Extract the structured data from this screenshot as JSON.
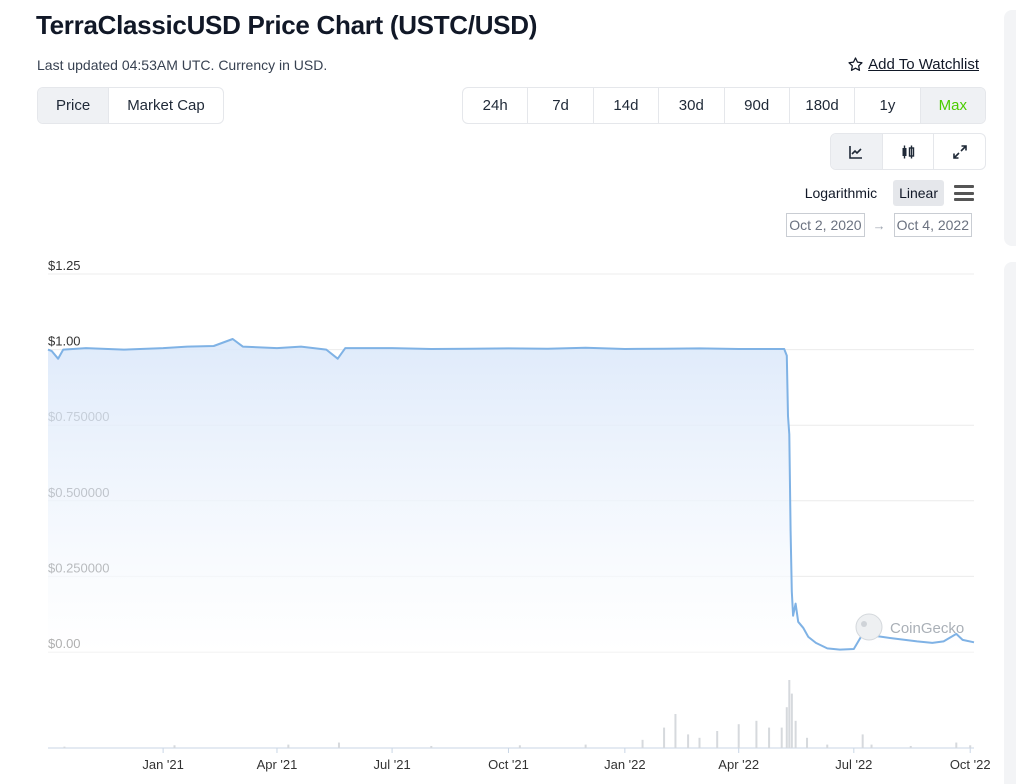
{
  "header": {
    "title": "TerraClassicUSD Price Chart (USTC/USD)",
    "subtitle": "Last updated 04:53AM UTC. Currency in USD.",
    "watchlist_label": "Add To Watchlist",
    "watchlist_icon": "star-outline-icon"
  },
  "metric_tabs": [
    {
      "label": "Price",
      "active": true
    },
    {
      "label": "Market Cap",
      "active": false
    }
  ],
  "range_tabs": [
    {
      "label": "24h",
      "active": false
    },
    {
      "label": "7d",
      "active": false
    },
    {
      "label": "14d",
      "active": false
    },
    {
      "label": "30d",
      "active": false
    },
    {
      "label": "90d",
      "active": false
    },
    {
      "label": "180d",
      "active": false
    },
    {
      "label": "1y",
      "active": false
    },
    {
      "label": "Max",
      "active": true
    }
  ],
  "view_buttons": [
    {
      "icon": "line-chart-icon",
      "active": true
    },
    {
      "icon": "candlestick-icon",
      "active": false
    },
    {
      "icon": "expand-icon",
      "active": false
    }
  ],
  "scale": {
    "logarithmic_label": "Logarithmic",
    "linear_label": "Linear",
    "active": "linear",
    "menu_icon": "hamburger-menu-icon"
  },
  "date_range": {
    "from": "Oct 2, 2020",
    "arrow": "→",
    "to": "Oct 4, 2022"
  },
  "colors": {
    "range_active": "#4bcc00",
    "line": "#7fb2e5",
    "area_top": "#dbe8fa",
    "volume": "#d6d9dd"
  },
  "chart_data": {
    "type": "area",
    "title": "",
    "xlabel": "",
    "ylabel": "",
    "y_scale": "linear",
    "ylim": [
      0,
      1.25
    ],
    "x_range": [
      "2020-10-02",
      "2022-10-04"
    ],
    "y_ticks": [
      {
        "value": 1.25,
        "label": "$1.25"
      },
      {
        "value": 1.0,
        "label": "$1.00"
      },
      {
        "value": 0.75,
        "label": "$0.750000"
      },
      {
        "value": 0.5,
        "label": "$0.500000"
      },
      {
        "value": 0.25,
        "label": "$0.250000"
      },
      {
        "value": 0.0,
        "label": "$0.00"
      }
    ],
    "x_ticks": [
      {
        "date": "2021-01-01",
        "label": "Jan '21"
      },
      {
        "date": "2021-04-01",
        "label": "Apr '21"
      },
      {
        "date": "2021-07-01",
        "label": "Jul '21"
      },
      {
        "date": "2021-10-01",
        "label": "Oct '21"
      },
      {
        "date": "2022-01-01",
        "label": "Jan '22"
      },
      {
        "date": "2022-04-01",
        "label": "Apr '22"
      },
      {
        "date": "2022-07-01",
        "label": "Jul '22"
      },
      {
        "date": "2022-10-01",
        "label": "Oct '22"
      }
    ],
    "grid": true,
    "watermark": "CoinGecko",
    "series": [
      {
        "points": [
          [
            "2020-10-02",
            1.0
          ],
          [
            "2020-10-05",
            0.995
          ],
          [
            "2020-10-10",
            0.97
          ],
          [
            "2020-10-14",
            1.0
          ],
          [
            "2020-11-01",
            1.005
          ],
          [
            "2020-12-01",
            1.0
          ],
          [
            "2021-01-01",
            1.005
          ],
          [
            "2021-01-20",
            1.01
          ],
          [
            "2021-02-10",
            1.012
          ],
          [
            "2021-02-25",
            1.035
          ],
          [
            "2021-03-05",
            1.01
          ],
          [
            "2021-04-01",
            1.005
          ],
          [
            "2021-04-20",
            1.01
          ],
          [
            "2021-05-10",
            1.0
          ],
          [
            "2021-05-19",
            0.97
          ],
          [
            "2021-05-25",
            1.005
          ],
          [
            "2021-06-10",
            1.005
          ],
          [
            "2021-07-01",
            1.005
          ],
          [
            "2021-08-01",
            1.002
          ],
          [
            "2021-09-01",
            1.003
          ],
          [
            "2021-10-01",
            1.004
          ],
          [
            "2021-11-01",
            1.003
          ],
          [
            "2021-12-01",
            1.006
          ],
          [
            "2022-01-01",
            1.002
          ],
          [
            "2022-02-01",
            1.003
          ],
          [
            "2022-03-01",
            1.004
          ],
          [
            "2022-04-01",
            1.002
          ],
          [
            "2022-05-07",
            1.002
          ],
          [
            "2022-05-09",
            0.98
          ],
          [
            "2022-05-10",
            0.78
          ],
          [
            "2022-05-11",
            0.72
          ],
          [
            "2022-05-12",
            0.4
          ],
          [
            "2022-05-13",
            0.2
          ],
          [
            "2022-05-14",
            0.12
          ],
          [
            "2022-05-16",
            0.16
          ],
          [
            "2022-05-18",
            0.1
          ],
          [
            "2022-05-22",
            0.08
          ],
          [
            "2022-05-26",
            0.05
          ],
          [
            "2022-06-01",
            0.03
          ],
          [
            "2022-06-10",
            0.012
          ],
          [
            "2022-06-20",
            0.008
          ],
          [
            "2022-07-01",
            0.01
          ],
          [
            "2022-07-08",
            0.06
          ],
          [
            "2022-07-10",
            0.05
          ],
          [
            "2022-07-20",
            0.052
          ],
          [
            "2022-08-01",
            0.045
          ],
          [
            "2022-08-20",
            0.035
          ],
          [
            "2022-09-01",
            0.03
          ],
          [
            "2022-09-10",
            0.035
          ],
          [
            "2022-09-20",
            0.06
          ],
          [
            "2022-09-25",
            0.04
          ],
          [
            "2022-10-04",
            0.032
          ]
        ]
      }
    ],
    "volume": {
      "points": [
        [
          "2020-10-15",
          0.02
        ],
        [
          "2021-01-10",
          0.04
        ],
        [
          "2021-04-10",
          0.05
        ],
        [
          "2021-05-20",
          0.08
        ],
        [
          "2021-08-01",
          0.03
        ],
        [
          "2021-10-10",
          0.04
        ],
        [
          "2021-12-01",
          0.05
        ],
        [
          "2022-01-15",
          0.12
        ],
        [
          "2022-02-01",
          0.3
        ],
        [
          "2022-02-10",
          0.5
        ],
        [
          "2022-02-20",
          0.2
        ],
        [
          "2022-03-01",
          0.15
        ],
        [
          "2022-03-15",
          0.25
        ],
        [
          "2022-04-01",
          0.35
        ],
        [
          "2022-04-15",
          0.4
        ],
        [
          "2022-04-25",
          0.3
        ],
        [
          "2022-05-05",
          0.3
        ],
        [
          "2022-05-09",
          0.6
        ],
        [
          "2022-05-11",
          1.0
        ],
        [
          "2022-05-13",
          0.8
        ],
        [
          "2022-05-16",
          0.4
        ],
        [
          "2022-05-25",
          0.15
        ],
        [
          "2022-06-10",
          0.05
        ],
        [
          "2022-07-08",
          0.2
        ],
        [
          "2022-07-15",
          0.05
        ],
        [
          "2022-08-15",
          0.03
        ],
        [
          "2022-09-20",
          0.08
        ],
        [
          "2022-10-01",
          0.04
        ]
      ]
    }
  }
}
